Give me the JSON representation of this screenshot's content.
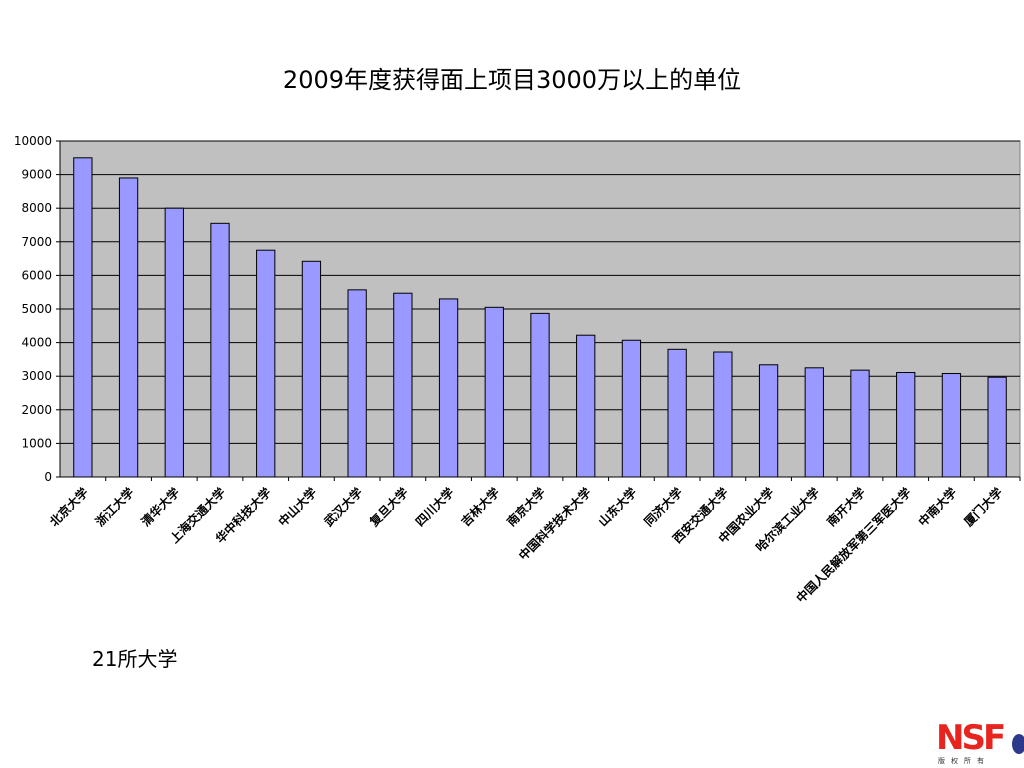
{
  "chart_data": {
    "type": "bar",
    "title": "2009年度获得面上项目3000万以上的单位",
    "xlabel": "",
    "ylabel": "",
    "ylim": [
      0,
      10000
    ],
    "yticks": [
      0,
      1000,
      2000,
      3000,
      4000,
      5000,
      6000,
      7000,
      8000,
      9000,
      10000
    ],
    "grid": true,
    "legend": "none",
    "colors": {
      "bar_fill": "#9999ff",
      "bar_stroke": "#000000",
      "plot_background": "#c0c0c0",
      "gridline": "#000000"
    },
    "categories": [
      "北京大学",
      "浙江大学",
      "清华大学",
      "上海交通大学",
      "华中科技大学",
      "中山大学",
      "武汉大学",
      "复旦大学",
      "四川大学",
      "吉林大学",
      "南京大学",
      "中国科学技术大学",
      "山东大学",
      "同济大学",
      "西安交通大学",
      "中国农业大学",
      "哈尔滨工业大学",
      "南开大学",
      "中国人民解放军第三军医大学",
      "中南大学",
      "厦门大学"
    ],
    "values": [
      9500,
      8900,
      8000,
      7550,
      6750,
      6420,
      5570,
      5470,
      5300,
      5050,
      4870,
      4220,
      4070,
      3800,
      3720,
      3340,
      3250,
      3180,
      3110,
      3080,
      2970
    ]
  },
  "footnote": "21所大学",
  "logo": {
    "text": "NSF",
    "subtext": "版权所有",
    "brand_color": "#e8241e",
    "accent_color": "#2d3a8c"
  }
}
